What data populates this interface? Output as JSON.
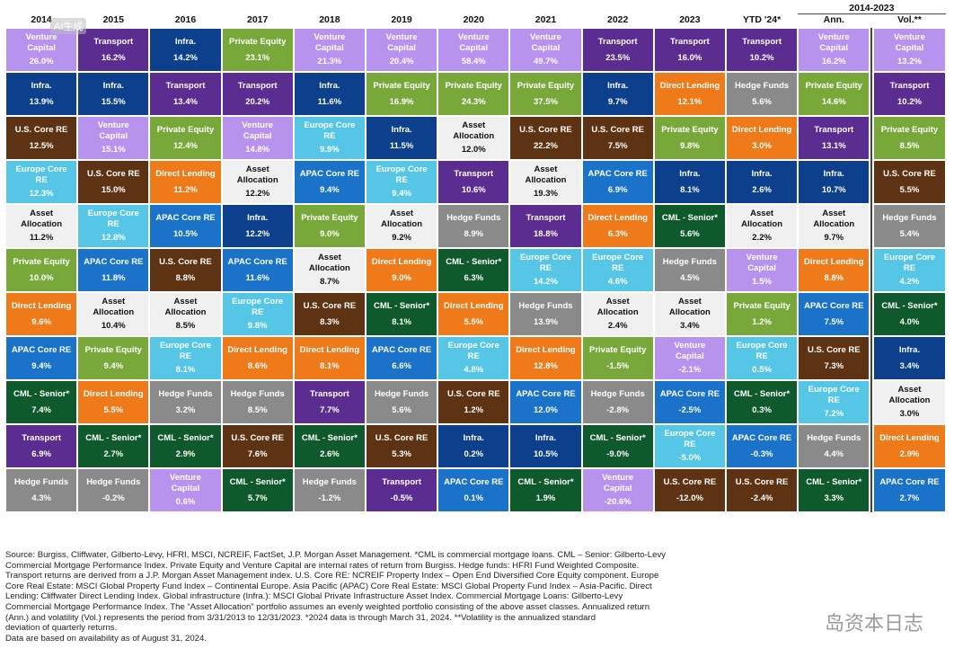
{
  "header": {
    "years": [
      "2014",
      "2015",
      "2016",
      "2017",
      "2018",
      "2019",
      "2020",
      "2021",
      "2022",
      "2023",
      "YTD '24*"
    ],
    "group_label": "2014-2023",
    "group_cols": [
      "Ann.",
      "Vol.**"
    ]
  },
  "colors": {
    "Venture Capital": "#b793ee",
    "Transport": "#5c2d91",
    "Infra.": "#0c3f8c",
    "Private Equity": "#79a83a",
    "U.S. Core RE": "#5e3313",
    "Europe Core RE": "#56c6e7",
    "Asset Allocation": "#f0f0f0",
    "APAC Core RE": "#1a73c9",
    "Direct Lending": "#ee7a1a",
    "CML - Senior*": "#0e5a2c",
    "Hedge Funds": "#8a8a8a"
  },
  "chart_data": {
    "type": "table",
    "columns": [
      "2014",
      "2015",
      "2016",
      "2017",
      "2018",
      "2019",
      "2020",
      "2021",
      "2022",
      "2023",
      "YTD '24*",
      "Ann.",
      "Vol.**"
    ],
    "grid": [
      [
        [
          "Venture Capital",
          "26.0%"
        ],
        [
          "Transport",
          "16.2%"
        ],
        [
          "Infra.",
          "14.2%"
        ],
        [
          "Private Equity",
          "23.1%"
        ],
        [
          "Venture Capital",
          "21.3%"
        ],
        [
          "Venture Capital",
          "20.4%"
        ],
        [
          "Venture Capital",
          "58.4%"
        ],
        [
          "Venture Capital",
          "49.7%"
        ],
        [
          "Transport",
          "23.5%"
        ],
        [
          "Transport",
          "16.0%"
        ],
        [
          "Transport",
          "10.2%"
        ],
        [
          "Venture Capital",
          "16.2%"
        ],
        [
          "Venture Capital",
          "13.2%"
        ]
      ],
      [
        [
          "Infra.",
          "13.9%"
        ],
        [
          "Infra.",
          "15.5%"
        ],
        [
          "Transport",
          "13.4%"
        ],
        [
          "Transport",
          "20.2%"
        ],
        [
          "Infra.",
          "11.6%"
        ],
        [
          "Private Equity",
          "16.9%"
        ],
        [
          "Private Equity",
          "24.3%"
        ],
        [
          "Private Equity",
          "37.5%"
        ],
        [
          "Infra.",
          "9.7%"
        ],
        [
          "Direct Lending",
          "12.1%"
        ],
        [
          "Hedge Funds",
          "5.6%"
        ],
        [
          "Private Equity",
          "14.6%"
        ],
        [
          "Transport",
          "10.2%"
        ]
      ],
      [
        [
          "U.S. Core RE",
          "12.5%"
        ],
        [
          "Venture Capital",
          "15.1%"
        ],
        [
          "Private Equity",
          "12.4%"
        ],
        [
          "Venture Capital",
          "14.8%"
        ],
        [
          "Europe Core RE",
          "9.9%"
        ],
        [
          "Infra.",
          "11.5%"
        ],
        [
          "Asset Allocation",
          "12.0%"
        ],
        [
          "U.S. Core RE",
          "22.2%"
        ],
        [
          "U.S. Core RE",
          "7.5%"
        ],
        [
          "Private Equity",
          "9.8%"
        ],
        [
          "Direct Lending",
          "3.0%"
        ],
        [
          "Transport",
          "13.1%"
        ],
        [
          "Private Equity",
          "8.5%"
        ]
      ],
      [
        [
          "Europe Core RE",
          "12.3%"
        ],
        [
          "U.S. Core RE",
          "15.0%"
        ],
        [
          "Direct Lending",
          "11.2%"
        ],
        [
          "Asset Allocation",
          "12.2%"
        ],
        [
          "APAC Core RE",
          "9.4%"
        ],
        [
          "Europe Core RE",
          "9.4%"
        ],
        [
          "Transport",
          "10.6%"
        ],
        [
          "Asset Allocation",
          "19.3%"
        ],
        [
          "APAC Core RE",
          "6.9%"
        ],
        [
          "Infra.",
          "8.1%"
        ],
        [
          "Infra.",
          "2.6%"
        ],
        [
          "Infra.",
          "10.7%"
        ],
        [
          "U.S. Core RE",
          "5.5%"
        ]
      ],
      [
        [
          "Asset Allocation",
          "11.2%"
        ],
        [
          "Europe Core RE",
          "12.8%"
        ],
        [
          "APAC Core RE",
          "10.5%"
        ],
        [
          "Infra.",
          "12.2%"
        ],
        [
          "Private Equity",
          "9.0%"
        ],
        [
          "Asset Allocation",
          "9.2%"
        ],
        [
          "Hedge Funds",
          "8.9%"
        ],
        [
          "Transport",
          "18.8%"
        ],
        [
          "Direct Lending",
          "6.3%"
        ],
        [
          "CML - Senior*",
          "5.6%"
        ],
        [
          "Asset Allocation",
          "2.2%"
        ],
        [
          "Asset Allocation",
          "9.7%"
        ],
        [
          "Hedge Funds",
          "5.4%"
        ]
      ],
      [
        [
          "Private Equity",
          "10.0%"
        ],
        [
          "APAC Core RE",
          "11.8%"
        ],
        [
          "U.S. Core RE",
          "8.8%"
        ],
        [
          "APAC Core RE",
          "11.6%"
        ],
        [
          "Asset Allocation",
          "8.7%"
        ],
        [
          "Direct Lending",
          "9.0%"
        ],
        [
          "CML - Senior*",
          "6.3%"
        ],
        [
          "Europe Core RE",
          "14.2%"
        ],
        [
          "Europe Core RE",
          "4.6%"
        ],
        [
          "Hedge Funds",
          "4.5%"
        ],
        [
          "Venture Capital",
          "1.5%"
        ],
        [
          "Direct Lending",
          "8.8%"
        ],
        [
          "Europe Core RE",
          "4.2%"
        ]
      ],
      [
        [
          "Direct Lending",
          "9.6%"
        ],
        [
          "Asset Allocation",
          "10.4%"
        ],
        [
          "Asset Allocation",
          "8.5%"
        ],
        [
          "Europe Core RE",
          "9.8%"
        ],
        [
          "U.S. Core RE",
          "8.3%"
        ],
        [
          "CML - Senior*",
          "8.1%"
        ],
        [
          "Direct Lending",
          "5.5%"
        ],
        [
          "Hedge Funds",
          "13.9%"
        ],
        [
          "Asset Allocation",
          "2.4%"
        ],
        [
          "Asset Allocation",
          "3.4%"
        ],
        [
          "Private Equity",
          "1.2%"
        ],
        [
          "APAC Core RE",
          "7.5%"
        ],
        [
          "CML - Senior*",
          "4.0%"
        ]
      ],
      [
        [
          "APAC Core RE",
          "9.4%"
        ],
        [
          "Private Equity",
          "9.4%"
        ],
        [
          "Europe Core RE",
          "8.1%"
        ],
        [
          "Direct Lending",
          "8.6%"
        ],
        [
          "Direct Lending",
          "8.1%"
        ],
        [
          "APAC Core RE",
          "6.6%"
        ],
        [
          "Europe Core RE",
          "4.8%"
        ],
        [
          "Direct Lending",
          "12.8%"
        ],
        [
          "Private Equity",
          "-1.5%"
        ],
        [
          "Venture Capital",
          "-2.1%"
        ],
        [
          "Europe Core RE",
          "0.5%"
        ],
        [
          "U.S. Core RE",
          "7.3%"
        ],
        [
          "Infra.",
          "3.4%"
        ]
      ],
      [
        [
          "CML - Senior*",
          "7.4%"
        ],
        [
          "Direct Lending",
          "5.5%"
        ],
        [
          "Hedge Funds",
          "3.2%"
        ],
        [
          "Hedge Funds",
          "8.5%"
        ],
        [
          "Transport",
          "7.7%"
        ],
        [
          "Hedge Funds",
          "5.6%"
        ],
        [
          "U.S. Core RE",
          "1.2%"
        ],
        [
          "APAC Core RE",
          "12.0%"
        ],
        [
          "Hedge Funds",
          "-2.8%"
        ],
        [
          "APAC Core RE",
          "-2.5%"
        ],
        [
          "CML - Senior*",
          "0.3%"
        ],
        [
          "Europe Core RE",
          "7.2%"
        ],
        [
          "Asset Allocation",
          "3.0%"
        ]
      ],
      [
        [
          "Transport",
          "6.9%"
        ],
        [
          "CML - Senior*",
          "2.7%"
        ],
        [
          "CML - Senior*",
          "2.9%"
        ],
        [
          "U.S. Core RE",
          "7.6%"
        ],
        [
          "CML - Senior*",
          "2.6%"
        ],
        [
          "U.S. Core RE",
          "5.3%"
        ],
        [
          "Infra.",
          "0.2%"
        ],
        [
          "Infra.",
          "10.5%"
        ],
        [
          "CML - Senior*",
          "-9.0%"
        ],
        [
          "Europe Core RE",
          "-5.0%"
        ],
        [
          "APAC Core RE",
          "-0.3%"
        ],
        [
          "Hedge Funds",
          "4.4%"
        ],
        [
          "Direct Lending",
          "2.9%"
        ]
      ],
      [
        [
          "Hedge Funds",
          "4.3%"
        ],
        [
          "Hedge Funds",
          "-0.2%"
        ],
        [
          "Venture Capital",
          "0.6%"
        ],
        [
          "CML - Senior*",
          "5.7%"
        ],
        [
          "Hedge Funds",
          "-1.2%"
        ],
        [
          "Transport",
          "-0.5%"
        ],
        [
          "APAC Core RE",
          "0.1%"
        ],
        [
          "CML - Senior*",
          "1.9%"
        ],
        [
          "Venture Capital",
          "-20.6%"
        ],
        [
          "U.S. Core RE",
          "-12.0%"
        ],
        [
          "U.S. Core RE",
          "-2.4%"
        ],
        [
          "CML - Senior*",
          "3.3%"
        ],
        [
          "APAC Core RE",
          "2.7%"
        ]
      ]
    ]
  },
  "footnote": {
    "lines": [
      "Source: Burgiss, Cliffwater, Gilberto-Levy, HFRI, MSCI, NCREIF, FactSet, J.P. Morgan Asset Management. *CML is commercial mortgage loans. CML – Senior: Gilberto-Levy",
      "Commercial Mortgage Performance Index. Private Equity and Venture Capital are internal rates of return from Burgiss. Hedge funds: HFRI Fund Weighted Composite.",
      "Transport returns are derived from a J.P. Morgan Asset Management index. U.S. Core RE: NCREIF Property Index – Open End Diversified Core Equity component. Europe",
      "Core Real Estate: MSCI Global Property Fund Index – Continental Europe. Asia Pacific (APAC) Core Real Estate: MSCI Global Property Fund Index – Asia-Pacific. Direct",
      "Lending: Cliffwater Direct Lending Index. Global infrastructure (Infra.): MSCI Global Private Infrastructure Asset Index. Commercial Mortgage Loans: Gilberto-Levy",
      "Commercial Mortgage Performance Index. The “Asset Allocation” portfolio assumes an evenly weighted portfolio consisting of the above asset classes. Annualized return",
      "(Ann.) and volatility (Vol.) represents the period from 3/31/2013 to 12/31/2023. *2024 data is through March 31, 2024. **Volatility is the annualized standard",
      "deviation of quarterly returns.",
      "Data are based on availability as of August 31, 2024."
    ]
  },
  "overlay": {
    "badge": "AI生成",
    "watermark": "岛资本日志"
  }
}
